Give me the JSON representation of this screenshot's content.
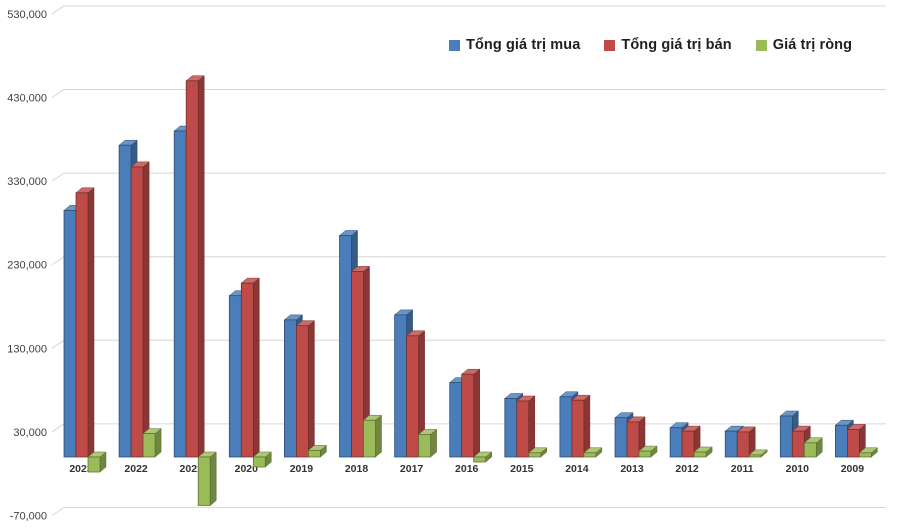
{
  "chart_data": {
    "type": "bar",
    "variant": "3d-clustered-column",
    "title": "",
    "xlabel": "",
    "ylabel": "",
    "categories": [
      "2023",
      "2022",
      "2021",
      "2020",
      "2019",
      "2018",
      "2017",
      "2016",
      "2015",
      "2014",
      "2013",
      "2012",
      "2011",
      "2010",
      "2009"
    ],
    "series": [
      {
        "name": "Tổng giá trị mua",
        "color": "#4A7EBB",
        "values": [
          295000,
          373000,
          390000,
          193000,
          164000,
          265000,
          170000,
          89000,
          70000,
          72000,
          47000,
          35000,
          31000,
          49000,
          38000
        ]
      },
      {
        "name": "Tổng giá trị bán",
        "color": "#BE4B48",
        "values": [
          316000,
          347000,
          450000,
          208000,
          157000,
          222000,
          145000,
          99000,
          67000,
          68000,
          42000,
          31000,
          30000,
          31000,
          33000
        ]
      },
      {
        "name": "Giá trị ròng",
        "color": "#9BBB59",
        "values": [
          -18000,
          28000,
          -58000,
          -12000,
          8000,
          44000,
          27000,
          -6000,
          5000,
          5000,
          7000,
          6000,
          2500,
          17000,
          5000
        ]
      }
    ],
    "ylim": [
      -70000,
      530000
    ],
    "ytick_step": 100000,
    "ytick_labels": [
      "530,000",
      "430,000",
      "330,000",
      "230,000",
      "130,000",
      "30,000",
      "-70,000"
    ],
    "grid": true,
    "legend_position": "top-center",
    "axis_text_color": "#404040",
    "gridline_color": "#D6D6D6",
    "background_color": "#FFFFFF"
  }
}
